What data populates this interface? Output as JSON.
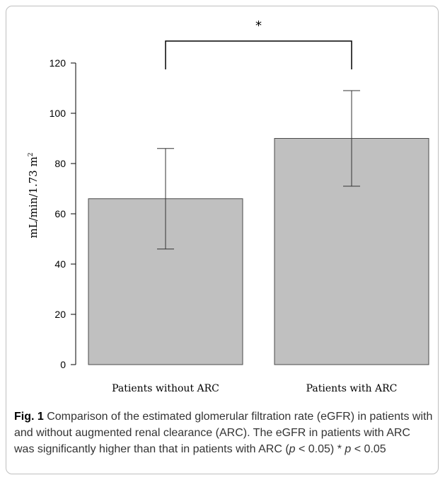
{
  "chart_data": {
    "type": "bar",
    "title": "",
    "xlabel": "",
    "ylabel": "mL/min/1.73 m",
    "ylabel_superscript": "2",
    "categories": [
      "Patients without ARC",
      "Patients with ARC"
    ],
    "values": [
      66,
      90
    ],
    "error_low": [
      46,
      71
    ],
    "error_high": [
      86,
      109
    ],
    "ylim": [
      0,
      120
    ],
    "yticks": [
      "0",
      "20",
      "40",
      "60",
      "80",
      "100",
      "120"
    ],
    "grid": false,
    "legend": "none",
    "significance": {
      "between": [
        "Patients without ARC",
        "Patients with ARC"
      ],
      "label": "*"
    },
    "colors": {
      "bar_fill": "#c0c0c0",
      "bar_stroke": "#4a4a4a",
      "axis": "#000000"
    }
  },
  "caption": {
    "label": "Fig. 1",
    "text1": " Comparison of the estimated glomerular filtration rate (eGFR) in patients with and without augmented renal clearance (ARC). The eGFR in patients with ARC was significantly higher than that in patients with ARC (",
    "p1": "p",
    "text2": " < 0.05) * ",
    "p2": "p",
    "text3": " < 0.05"
  }
}
